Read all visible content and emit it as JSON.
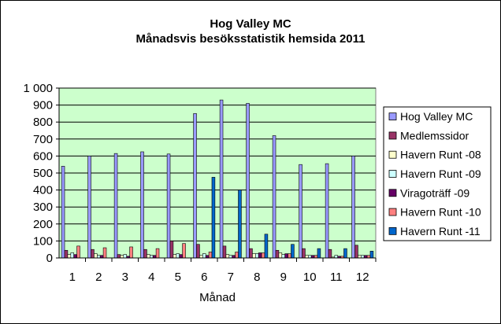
{
  "chart_data": {
    "type": "bar",
    "title": "Hog Valley MC",
    "subtitle": "Månadsvis besöksstatistik hemsida 2011",
    "xlabel": "Månad",
    "ylabel": "",
    "ylim": [
      0,
      1000
    ],
    "ytick_labels": [
      "0",
      "100",
      "200",
      "300",
      "400",
      "500",
      "600",
      "700",
      "800",
      "900",
      "1 000"
    ],
    "categories": [
      "1",
      "2",
      "3",
      "4",
      "5",
      "6",
      "7",
      "8",
      "9",
      "10",
      "11",
      "12"
    ],
    "grid": true,
    "legend_position": "right",
    "plot_background": "#ccffcc",
    "series": [
      {
        "name": "Hog Valley MC",
        "color": "#9999ff",
        "values": [
          540,
          600,
          615,
          625,
          612,
          850,
          930,
          910,
          720,
          550,
          555,
          600
        ]
      },
      {
        "name": "Medlemssidor",
        "color": "#993366",
        "values": [
          45,
          50,
          20,
          50,
          100,
          80,
          70,
          55,
          45,
          55,
          50,
          75
        ]
      },
      {
        "name": "Havern Runt -08",
        "color": "#ffffcc",
        "values": [
          20,
          25,
          15,
          20,
          20,
          15,
          20,
          25,
          30,
          15,
          5,
          15
        ]
      },
      {
        "name": "Havern Runt -09",
        "color": "#ccffff",
        "values": [
          30,
          15,
          20,
          15,
          25,
          25,
          15,
          25,
          20,
          15,
          15,
          15
        ]
      },
      {
        "name": "Viragoträff -09",
        "color": "#660066",
        "values": [
          20,
          15,
          10,
          15,
          20,
          15,
          15,
          30,
          25,
          15,
          10,
          15
        ]
      },
      {
        "name": "Havern Runt -10",
        "color": "#ff8080",
        "values": [
          70,
          60,
          65,
          55,
          85,
          35,
          35,
          30,
          25,
          15,
          10,
          15
        ]
      },
      {
        "name": "Havern Runt -11",
        "color": "#0066cc",
        "values": [
          0,
          0,
          0,
          0,
          0,
          475,
          400,
          140,
          80,
          55,
          55,
          40
        ]
      }
    ]
  }
}
